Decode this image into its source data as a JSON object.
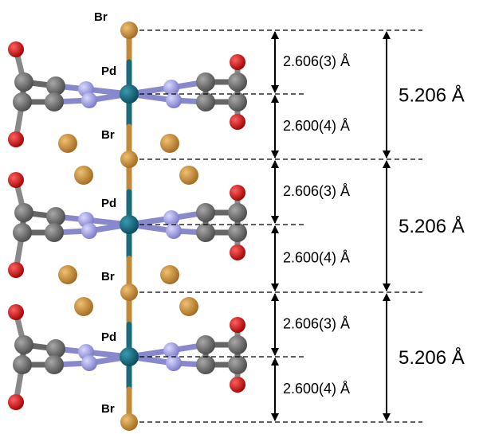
{
  "atom_labels": [
    "Br",
    "Pd",
    "Br",
    "Pd",
    "Br",
    "Pd",
    "Br"
  ],
  "layers": [
    {
      "upper": "2.606(3) Å",
      "lower": "2.600(4) Å",
      "total": "5.206 Å"
    },
    {
      "upper": "2.606(3) Å",
      "lower": "2.600(4) Å",
      "total": "5.206 Å"
    },
    {
      "upper": "2.606(3) Å",
      "lower": "2.600(4) Å",
      "total": "5.206 Å"
    }
  ]
}
